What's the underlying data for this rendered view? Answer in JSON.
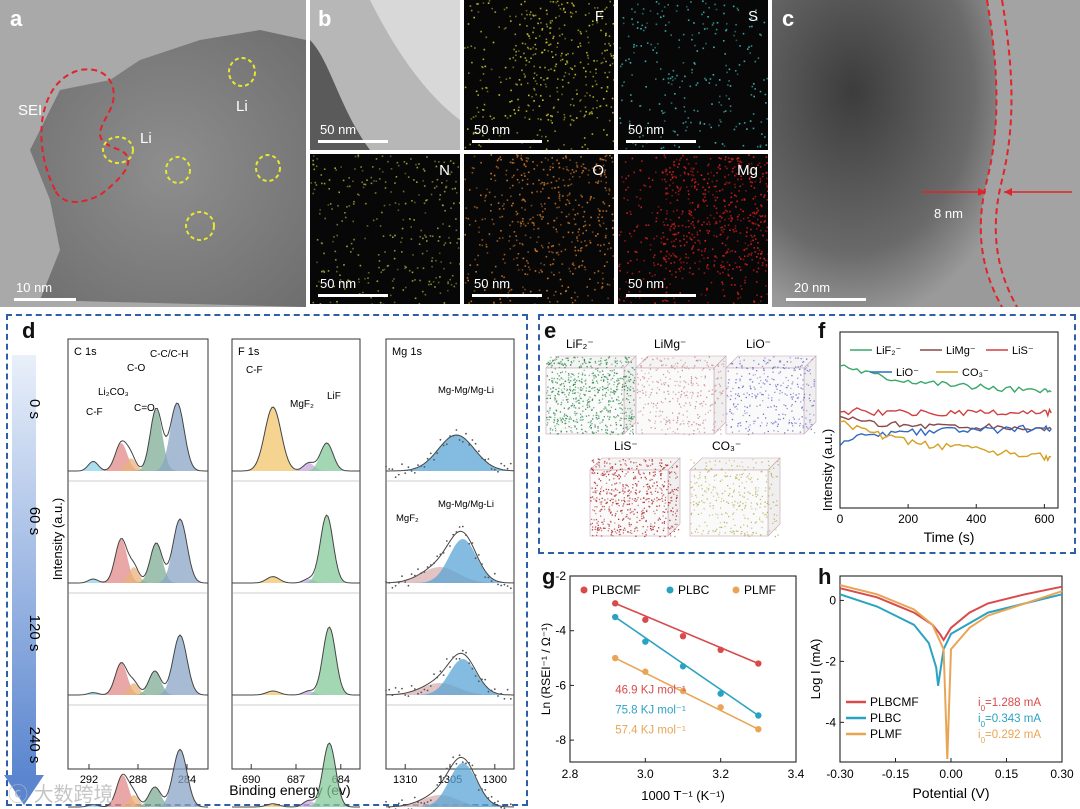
{
  "colors": {
    "accent_blue": "#2c5fa8",
    "red_curve": "#d94b4b",
    "cyan_curve": "#2aa3c2",
    "orange_curve": "#e9a556"
  },
  "panel_a": {
    "label": "a",
    "sei": "SEI",
    "li1": "Li",
    "li2": "Li",
    "scale": "10 nm"
  },
  "panel_b": {
    "label": "b",
    "maps": [
      {
        "element": "",
        "scale": "50 nm",
        "color": "#d6d6d6"
      },
      {
        "element": "F",
        "scale": "50 nm",
        "color": "#c8c42a"
      },
      {
        "element": "S",
        "scale": "50 nm",
        "color": "#3fb8b8"
      },
      {
        "element": "N",
        "scale": "50 nm",
        "color": "#a8a83a"
      },
      {
        "element": "O",
        "scale": "50 nm",
        "color": "#cf7a2a"
      },
      {
        "element": "Mg",
        "scale": "50 nm",
        "color": "#d61f1f"
      }
    ]
  },
  "panel_c": {
    "label": "c",
    "thickness": "8 nm",
    "scale": "20 nm"
  },
  "panel_d": {
    "label": "d",
    "times": [
      "0 s",
      "60 s",
      "120 s",
      "240 s"
    ],
    "ylabel": "Intensity (a.u.)",
    "xlabel": "Binding energy (ev)",
    "c1s": {
      "title": "C 1s",
      "peaks": [
        "C-F",
        "Li2CO3",
        "C=O",
        "C-O",
        "C-C/C-H"
      ],
      "ticks": [
        "292",
        "288",
        "284"
      ]
    },
    "f1s": {
      "title": "F 1s",
      "peaks": [
        "C-F",
        "MgF2",
        "LiF"
      ],
      "ticks": [
        "690",
        "687",
        "684"
      ]
    },
    "mg1s": {
      "title": "Mg 1s",
      "peaks": [
        "Mg-Mg/Mg-Li",
        "Mg-Mg/Mg-Li",
        "MgF2"
      ],
      "ticks": [
        "1310",
        "1305",
        "1300"
      ]
    }
  },
  "panel_e": {
    "label": "e",
    "fragments": [
      {
        "name": "LiF2-",
        "color": "#2f8a4a"
      },
      {
        "name": "LiMg-",
        "color": "#c98a8a"
      },
      {
        "name": "LiO-",
        "color": "#6a6ac8"
      },
      {
        "name": "LiS-",
        "color": "#b02a2a"
      },
      {
        "name": "CO3-",
        "color": "#b8b25a"
      }
    ]
  },
  "panel_f": {
    "label": "f"
  },
  "panel_g": {
    "label": "g"
  },
  "panel_h": {
    "label": "h"
  },
  "watermark": "大数跨境",
  "chart_data": [
    {
      "id": "f",
      "type": "line",
      "title": "",
      "xlabel": "Time (s)",
      "ylabel": "Intensity (a.u.)",
      "xlim": [
        0,
        640
      ],
      "ylim": [
        0,
        1
      ],
      "xticks": [
        0,
        200,
        400,
        600
      ],
      "legend": [
        "LiF2-",
        "LiMg-",
        "LiS-",
        "LiO-",
        "CO3-"
      ],
      "series": [
        {
          "name": "LiF2-",
          "color": "#3aa86a",
          "x": [
            0,
            50,
            100,
            150,
            200,
            250,
            300,
            350,
            400,
            450,
            500,
            550,
            600,
            620
          ],
          "y": [
            0.82,
            0.79,
            0.76,
            0.74,
            0.73,
            0.72,
            0.71,
            0.7,
            0.69,
            0.68,
            0.68,
            0.67,
            0.66,
            0.66
          ]
        },
        {
          "name": "LiMg-",
          "color": "#8a4a4a",
          "x": [
            0,
            50,
            100,
            150,
            200,
            250,
            300,
            350,
            400,
            450,
            500,
            550,
            600,
            620
          ],
          "y": [
            0.52,
            0.49,
            0.48,
            0.48,
            0.47,
            0.47,
            0.47,
            0.46,
            0.46,
            0.46,
            0.46,
            0.45,
            0.45,
            0.45
          ]
        },
        {
          "name": "LiS-",
          "color": "#d04040",
          "x": [
            0,
            50,
            100,
            150,
            200,
            250,
            300,
            350,
            400,
            450,
            500,
            550,
            600,
            620
          ],
          "y": [
            0.55,
            0.55,
            0.54,
            0.54,
            0.54,
            0.54,
            0.54,
            0.54,
            0.54,
            0.54,
            0.54,
            0.54,
            0.54,
            0.54
          ]
        },
        {
          "name": "LiO-",
          "color": "#2f6ac0",
          "x": [
            0,
            50,
            100,
            150,
            200,
            250,
            300,
            350,
            400,
            450,
            500,
            550,
            600,
            620
          ],
          "y": [
            0.36,
            0.4,
            0.41,
            0.42,
            0.43,
            0.43,
            0.44,
            0.44,
            0.44,
            0.44,
            0.45,
            0.45,
            0.45,
            0.45
          ]
        },
        {
          "name": "CO3-",
          "color": "#d6a020",
          "x": [
            0,
            50,
            100,
            150,
            200,
            250,
            300,
            350,
            400,
            450,
            500,
            550,
            600,
            620
          ],
          "y": [
            0.5,
            0.45,
            0.42,
            0.4,
            0.38,
            0.36,
            0.35,
            0.34,
            0.33,
            0.32,
            0.31,
            0.3,
            0.29,
            0.29
          ]
        }
      ]
    },
    {
      "id": "g",
      "type": "scatter",
      "xlabel": "1000 T⁻¹ (K⁻¹)",
      "ylabel": "Ln (RSEI⁻¹ / Ω⁻¹)",
      "xlim": [
        2.8,
        3.4
      ],
      "ylim": [
        -8.8,
        -2
      ],
      "xticks": [
        2.8,
        3.0,
        3.2,
        3.4
      ],
      "yticks": [
        -2,
        -4,
        -6,
        -8
      ],
      "legend": [
        "PLBCMF",
        "PLBC",
        "PLMF"
      ],
      "annotations": [
        "46.9 KJ mol⁻¹",
        "75.8 KJ mol⁻¹",
        "57.4 KJ mol⁻¹"
      ],
      "series": [
        {
          "name": "PLBCMF",
          "color": "#d94b4b",
          "x": [
            2.92,
            3.0,
            3.1,
            3.2,
            3.3
          ],
          "y": [
            -3.0,
            -3.6,
            -4.2,
            -4.7,
            -5.2
          ]
        },
        {
          "name": "PLBC",
          "color": "#2aa3c2",
          "x": [
            2.92,
            3.0,
            3.1,
            3.2,
            3.3
          ],
          "y": [
            -3.5,
            -4.4,
            -5.3,
            -6.3,
            -7.1
          ]
        },
        {
          "name": "PLMF",
          "color": "#e9a556",
          "x": [
            2.92,
            3.0,
            3.1,
            3.2,
            3.3
          ],
          "y": [
            -5.0,
            -5.5,
            -6.2,
            -6.8,
            -7.6
          ]
        }
      ]
    },
    {
      "id": "h",
      "type": "line",
      "xlabel": "Potential (V)",
      "ylabel": "Log I (mA)",
      "xlim": [
        -0.3,
        0.3
      ],
      "ylim": [
        -5.3,
        0.8
      ],
      "xticks": [
        -0.3,
        -0.15,
        0.0,
        0.15,
        0.3
      ],
      "yticks": [
        0,
        -2,
        -4
      ],
      "legend": [
        "PLBCMF",
        "PLBC",
        "PLMF"
      ],
      "annotations": [
        "i0=1.288 mA",
        "i0=0.343 mA",
        "i0=0.292 mA"
      ],
      "series": [
        {
          "name": "PLBCMF",
          "color": "#d94b4b",
          "x": [
            -0.3,
            -0.2,
            -0.1,
            -0.05,
            -0.03,
            -0.02,
            0.0,
            0.05,
            0.1,
            0.2,
            0.3
          ],
          "y": [
            0.4,
            0.1,
            -0.4,
            -0.8,
            -1.1,
            -1.3,
            -0.9,
            -0.4,
            -0.1,
            0.2,
            0.45
          ]
        },
        {
          "name": "PLBC",
          "color": "#2aa3c2",
          "x": [
            -0.3,
            -0.2,
            -0.1,
            -0.06,
            -0.04,
            -0.035,
            -0.02,
            0.0,
            0.1,
            0.2,
            0.3
          ],
          "y": [
            0.2,
            -0.2,
            -0.8,
            -1.4,
            -2.2,
            -2.8,
            -1.6,
            -1.1,
            -0.4,
            -0.1,
            0.2
          ]
        },
        {
          "name": "PLMF",
          "color": "#e9a556",
          "x": [
            -0.3,
            -0.2,
            -0.1,
            -0.05,
            -0.02,
            -0.01,
            0.0,
            0.05,
            0.1,
            0.2,
            0.3
          ],
          "y": [
            0.5,
            0.2,
            -0.3,
            -0.8,
            -1.6,
            -5.2,
            -1.6,
            -0.9,
            -0.5,
            -0.1,
            0.3
          ]
        }
      ]
    }
  ]
}
